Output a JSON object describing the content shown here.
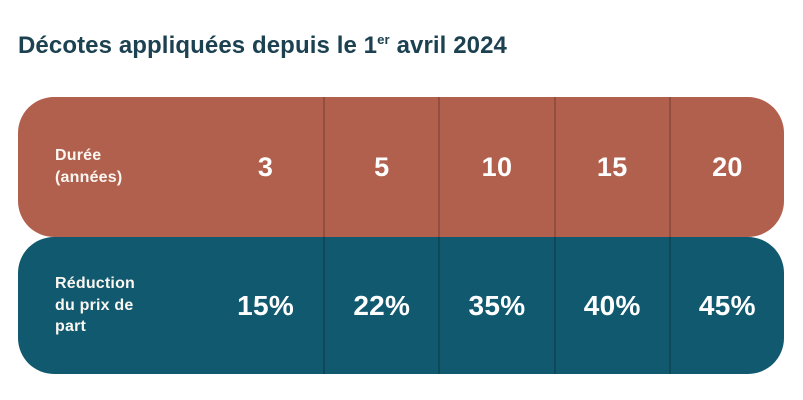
{
  "title": {
    "prefix": "Décotes appliquées depuis le 1",
    "superscript": "er",
    "suffix": " avril 2024"
  },
  "table": {
    "rows": [
      {
        "id": "duration",
        "label": "Durée\n(années)",
        "values": [
          "3",
          "5",
          "10",
          "15",
          "20"
        ]
      },
      {
        "id": "reduction",
        "label": "Réduction\ndu prix de\npart",
        "values": [
          "15%",
          "22%",
          "35%",
          "40%",
          "45%"
        ]
      }
    ]
  },
  "colors": {
    "title_text": "#1c4150",
    "duration_row_bg": "#b2604e",
    "reduction_row_bg": "#11596f",
    "cell_text": "#ffffff",
    "column_divider": "rgba(0,0,0,0.18)",
    "page_bg": "#ffffff"
  },
  "chart_data": {
    "type": "table",
    "title": "Décotes appliquées depuis le 1er avril 2024",
    "series": [
      {
        "name": "Durée (années)",
        "values": [
          3,
          5,
          10,
          15,
          20
        ]
      },
      {
        "name": "Réduction du prix de part",
        "values": [
          15,
          22,
          35,
          40,
          45
        ],
        "unit": "%"
      }
    ],
    "layout_hints": {
      "orientation": "horizontal-rows",
      "header_row_color": "#b2604e",
      "data_row_color": "#11596f",
      "rounded_rows": true
    }
  }
}
